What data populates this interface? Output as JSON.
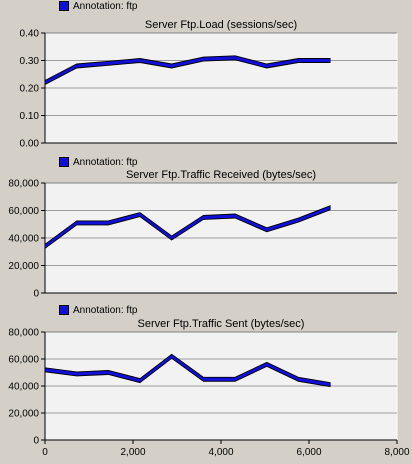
{
  "colors": {
    "background": "#d4d0c8",
    "plot_area": "#f2f2f2",
    "series": "#1010d8",
    "grid": "#808080"
  },
  "chart_data": [
    {
      "type": "line",
      "legend": "Annotation: ftp",
      "title": "Server Ftp.Load (sessions/sec)",
      "xlim": [
        0,
        8000
      ],
      "ylim": [
        0,
        0.4
      ],
      "yticks": [
        "0.00",
        "0.10",
        "0.20",
        "0.30",
        "0.40"
      ],
      "xticks": [],
      "series": [
        {
          "x": [
            0,
            720,
            1440,
            2160,
            2880,
            3600,
            4320,
            5040,
            5760,
            6480
          ],
          "y": [
            0.22,
            0.28,
            0.29,
            0.3,
            0.28,
            0.305,
            0.31,
            0.28,
            0.3,
            0.3
          ]
        }
      ]
    },
    {
      "type": "line",
      "legend": "Annotation: ftp",
      "title": "Server Ftp.Traffic Received (bytes/sec)",
      "xlim": [
        0,
        8000
      ],
      "ylim": [
        0,
        80000
      ],
      "yticks": [
        "0",
        "20,000",
        "40,000",
        "60,000",
        "80,000"
      ],
      "xticks": [],
      "series": [
        {
          "x": [
            0,
            720,
            1440,
            2160,
            2880,
            3600,
            4320,
            5040,
            5760,
            6480
          ],
          "y": [
            34000,
            51000,
            51000,
            57000,
            40000,
            55000,
            56000,
            46000,
            53000,
            62000
          ]
        }
      ]
    },
    {
      "type": "line",
      "legend": "Annotation: ftp",
      "title": "Server Ftp.Traffic Sent (bytes/sec)",
      "xlim": [
        0,
        8000
      ],
      "ylim": [
        0,
        80000
      ],
      "yticks": [
        "0",
        "20,000",
        "40,000",
        "60,000",
        "80,000"
      ],
      "xticks": [
        "0",
        "2,000",
        "4,000",
        "6,000",
        "8,000"
      ],
      "series": [
        {
          "x": [
            0,
            720,
            1440,
            2160,
            2880,
            3600,
            4320,
            5040,
            5760,
            6480
          ],
          "y": [
            52000,
            49000,
            50000,
            44000,
            62000,
            45000,
            45000,
            56000,
            45000,
            41000
          ]
        }
      ]
    }
  ]
}
